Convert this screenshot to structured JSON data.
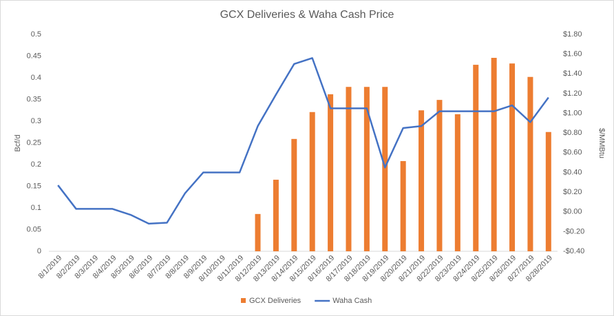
{
  "chart_data": {
    "type": "combo",
    "title": "GCX Deliveries & Waha Cash Price",
    "y_label": "Bcf/d",
    "y2_label": "$/MMBtu",
    "categories": [
      "8/1/2019",
      "8/2/2019",
      "8/3/2019",
      "8/4/2019",
      "8/5/2019",
      "8/6/2019",
      "8/7/2019",
      "8/8/2019",
      "8/9/2019",
      "8/10/2019",
      "8/11/2019",
      "8/12/2019",
      "8/13/2019",
      "8/14/2019",
      "8/15/2019",
      "8/16/2019",
      "8/17/2019",
      "8/18/2019",
      "8/19/2019",
      "8/20/2019",
      "8/21/2019",
      "8/22/2019",
      "8/23/2019",
      "8/24/2019",
      "8/25/2019",
      "8/26/2019",
      "8/27/2019",
      "8/28/2019"
    ],
    "series": [
      {
        "name": "GCX Deliveries",
        "type": "bar",
        "color": "#ed7d31",
        "values": [
          null,
          null,
          null,
          null,
          null,
          null,
          null,
          null,
          null,
          null,
          null,
          0.086,
          0.165,
          0.259,
          0.321,
          0.362,
          0.379,
          0.379,
          0.379,
          0.208,
          0.325,
          0.349,
          0.316,
          0.43,
          0.446,
          0.433,
          0.402,
          0.275
        ]
      },
      {
        "name": "Waha Cash",
        "type": "line",
        "axis": "y2",
        "color": "#4472c4",
        "values": [
          0.27,
          0.03,
          0.03,
          0.03,
          -0.03,
          -0.12,
          -0.11,
          0.19,
          0.4,
          0.4,
          0.4,
          0.87,
          1.19,
          1.5,
          1.56,
          1.05,
          1.05,
          1.05,
          0.45,
          0.85,
          0.87,
          1.02,
          1.02,
          1.02,
          1.02,
          1.08,
          0.91,
          1.16
        ]
      }
    ],
    "ylim": [
      0,
      0.5
    ],
    "yticks": [
      0,
      0.05,
      0.1,
      0.15,
      0.2,
      0.25,
      0.3,
      0.35,
      0.4,
      0.45,
      0.5
    ],
    "y2lim": [
      -0.4,
      1.8
    ],
    "y2ticks": [
      {
        "value": -0.4,
        "label": "-$0.40"
      },
      {
        "value": -0.2,
        "label": "-$0.20"
      },
      {
        "value": 0,
        "label": "$0.00"
      },
      {
        "value": 0.2,
        "label": "$0.20"
      },
      {
        "value": 0.4,
        "label": "$0.40"
      },
      {
        "value": 0.6,
        "label": "$0.60"
      },
      {
        "value": 0.8,
        "label": "$0.80"
      },
      {
        "value": 1.0,
        "label": "$1.00"
      },
      {
        "value": 1.2,
        "label": "$1.20"
      },
      {
        "value": 1.4,
        "label": "$1.40"
      },
      {
        "value": 1.6,
        "label": "$1.60"
      },
      {
        "value": 1.8,
        "label": "$1.80"
      }
    ],
    "grid": false,
    "legend": "bottom"
  }
}
